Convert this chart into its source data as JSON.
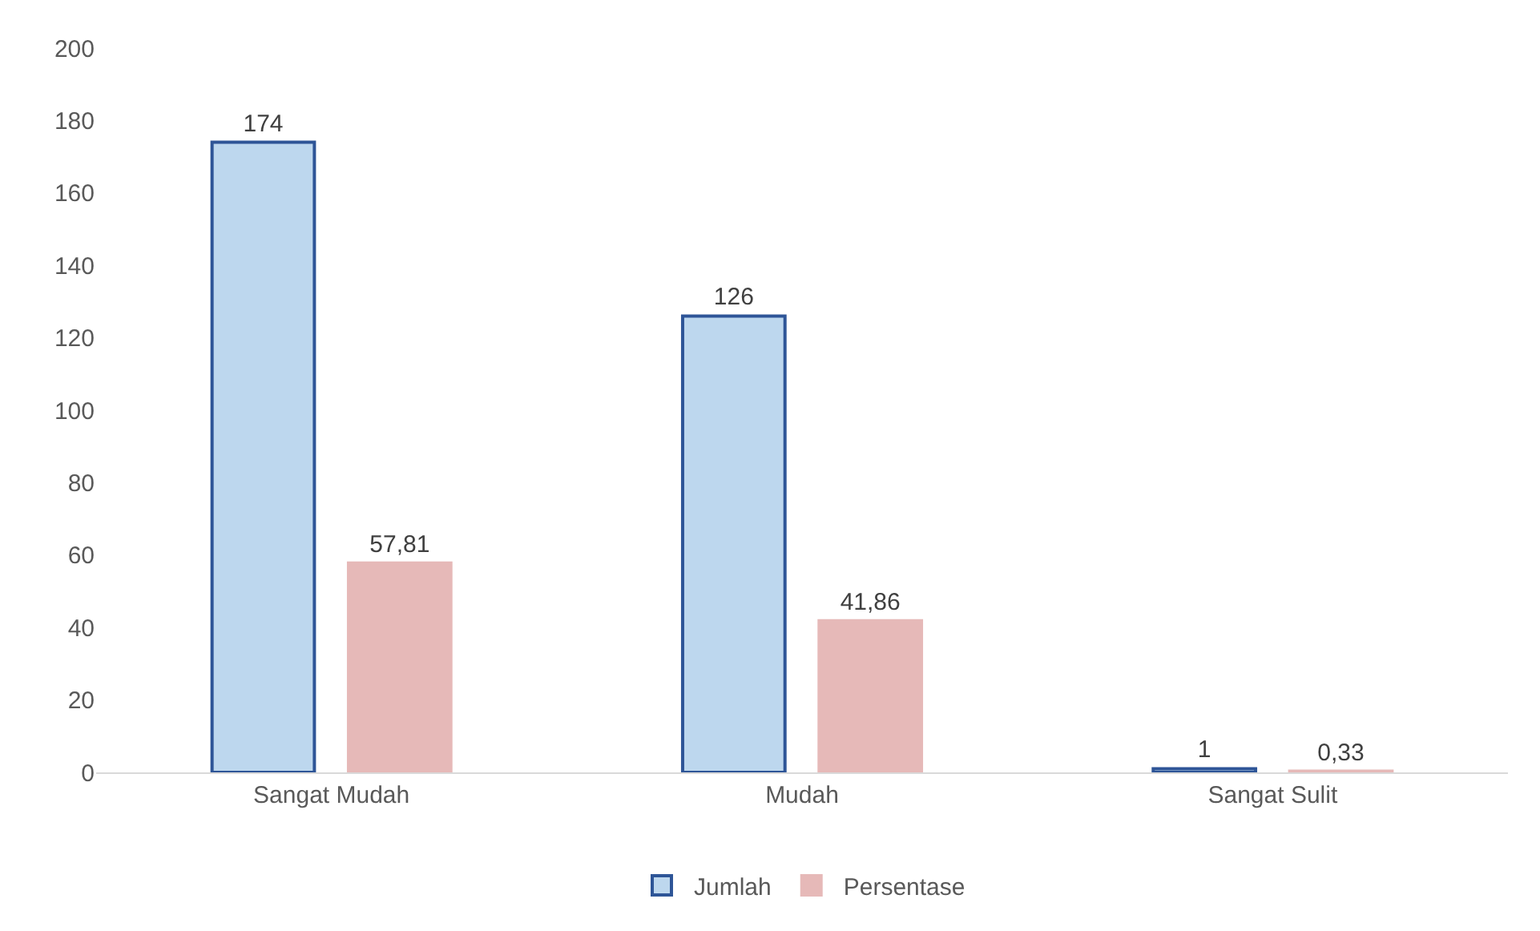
{
  "chart_data": {
    "type": "bar",
    "categories": [
      "Sangat Mudah",
      "Mudah",
      "Sangat Sulit"
    ],
    "series": [
      {
        "name": "Jumlah",
        "color": "#bdd7ee",
        "values": [
          174,
          126,
          1
        ],
        "value_labels": [
          "174",
          "126",
          "1"
        ]
      },
      {
        "name": "Persentase",
        "color": "#e6b9b8",
        "values": [
          57.81,
          41.86,
          0.33
        ],
        "value_labels": [
          "57,81",
          "41,86",
          "0,33"
        ]
      }
    ],
    "ylim": [
      0,
      200
    ],
    "yticks": [
      0,
      20,
      40,
      60,
      80,
      100,
      120,
      140,
      160,
      180,
      200
    ],
    "grid": false,
    "legend": "bottom"
  }
}
